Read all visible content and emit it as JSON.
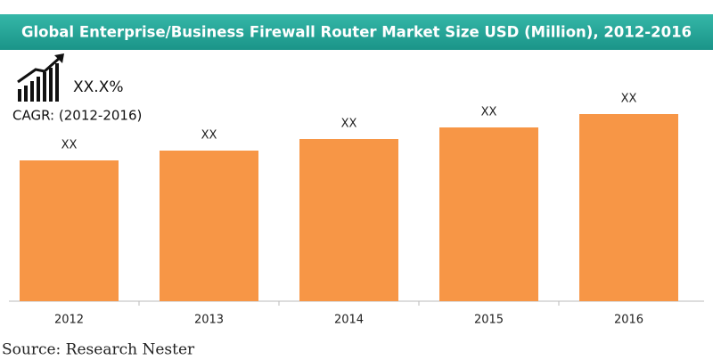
{
  "chart_data": {
    "type": "bar",
    "title": "Global Enterprise/Business Firewall Router Market Size USD (Million), 2012-2016",
    "categories": [
      "2012",
      "2013",
      "2014",
      "2015",
      "2016"
    ],
    "values": [
      158,
      169,
      182,
      195,
      210
    ],
    "value_labels": [
      "XX",
      "XX",
      "XX",
      "XX",
      "XX"
    ],
    "color": "#f79646",
    "cagr_value": "XX.X%",
    "cagr_label": "CAGR: (2012-2016)",
    "source": "Source: Research Nester"
  }
}
